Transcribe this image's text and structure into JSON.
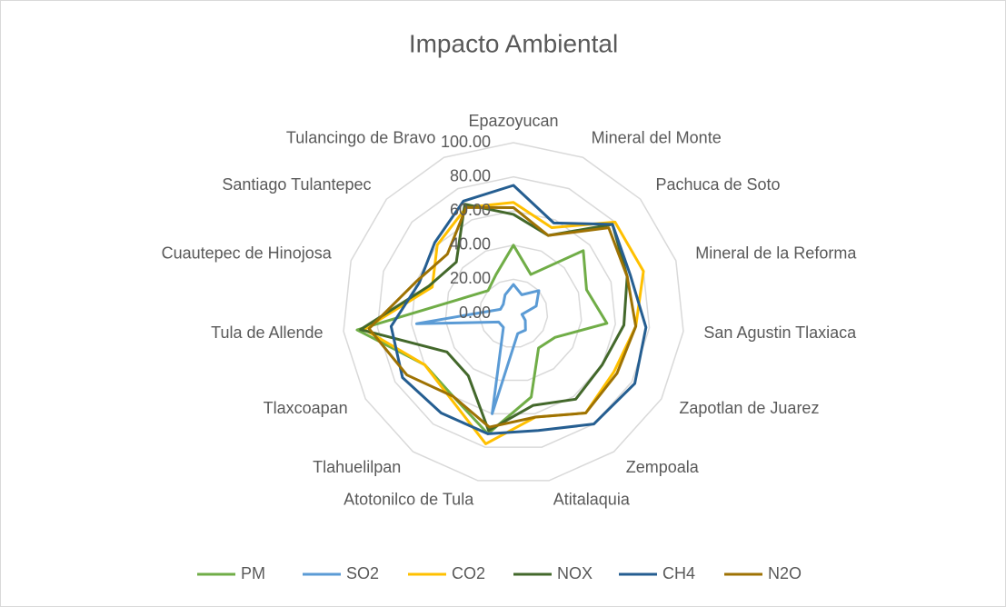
{
  "chart_data": {
    "type": "radar",
    "title": "Impacto Ambiental",
    "categories": [
      "Epazoyucan",
      "Mineral del Monte",
      "Pachuca de Soto",
      "Mineral de la Reforma",
      "San Agustin Tlaxiaca",
      "Zapotlan de Juarez",
      "Zempoala",
      "Atitalaquia",
      "Atotonilco de Tula",
      "Tlahuelilpan",
      "Tlaxcoapan",
      "Tula de Allende",
      "Cuautepec de Hinojosa",
      "Santiago Tulantepec",
      "Tulancingo de Bravo"
    ],
    "series": [
      {
        "name": "PM",
        "color": "#70ad47",
        "values": [
          40,
          25,
          55,
          45,
          55,
          28,
          25,
          50,
          72,
          60,
          60,
          92,
          30,
          20,
          25
        ]
      },
      {
        "name": "SO2",
        "color": "#5b9bd5",
        "values": [
          17,
          12,
          20,
          14,
          5,
          8,
          12,
          12,
          60,
          10,
          10,
          57,
          8,
          8,
          12
        ]
      },
      {
        "name": "CO2",
        "color": "#ffc000",
        "values": [
          65,
          55,
          80,
          80,
          72,
          68,
          72,
          62,
          78,
          62,
          60,
          88,
          50,
          60,
          68
        ]
      },
      {
        "name": "NOX",
        "color": "#43682b",
        "values": [
          58,
          50,
          78,
          70,
          65,
          60,
          62,
          55,
          70,
          45,
          45,
          90,
          52,
          45,
          70
        ]
      },
      {
        "name": "CH4",
        "color": "#255e91",
        "values": [
          75,
          58,
          78,
          72,
          78,
          82,
          80,
          70,
          72,
          72,
          75,
          72,
          58,
          62,
          72
        ]
      },
      {
        "name": "N2O",
        "color": "#9e7203",
        "values": [
          62,
          50,
          75,
          70,
          72,
          70,
          72,
          62,
          68,
          60,
          72,
          85,
          60,
          52,
          68
        ]
      }
    ],
    "ylim": [
      0,
      100
    ],
    "yticks": [
      {
        "value": 0,
        "label": "0.00"
      },
      {
        "value": 20,
        "label": "20.00"
      },
      {
        "value": 40,
        "label": "40.00"
      },
      {
        "value": 60,
        "label": "60.00"
      },
      {
        "value": 80,
        "label": "80.00"
      },
      {
        "value": 100,
        "label": "100.00"
      }
    ],
    "grid": true,
    "legend": "bottom"
  }
}
